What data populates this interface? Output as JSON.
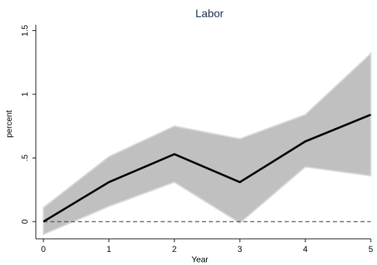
{
  "chart_data": {
    "type": "line",
    "title": "Labor",
    "xlabel": "Year",
    "ylabel": "percent",
    "x": [
      0,
      1,
      2,
      3,
      4,
      5
    ],
    "x_tick_labels": [
      "0",
      "1",
      "2",
      "3",
      "4",
      "5"
    ],
    "y_ticks": [
      0,
      0.5,
      1,
      1.5
    ],
    "y_tick_labels": [
      "0",
      ".5",
      "1",
      "1.5"
    ],
    "xlim": [
      0,
      5
    ],
    "ylim": [
      -0.12,
      1.55
    ],
    "grid": false,
    "series": [
      {
        "values": [
          0.0,
          0.31,
          0.53,
          0.31,
          0.63,
          0.84
        ]
      }
    ],
    "confidence_band": {
      "lower": [
        -0.1,
        0.12,
        0.31,
        -0.01,
        0.43,
        0.36
      ],
      "upper": [
        0.11,
        0.51,
        0.75,
        0.65,
        0.84,
        1.32
      ]
    },
    "reference_line": {
      "y": 0,
      "style": "dashed"
    },
    "colors": {
      "line": "#000000",
      "band": "#c0c0c0",
      "band_edge": "#d9d9d9",
      "title": "#1a2b50"
    }
  }
}
